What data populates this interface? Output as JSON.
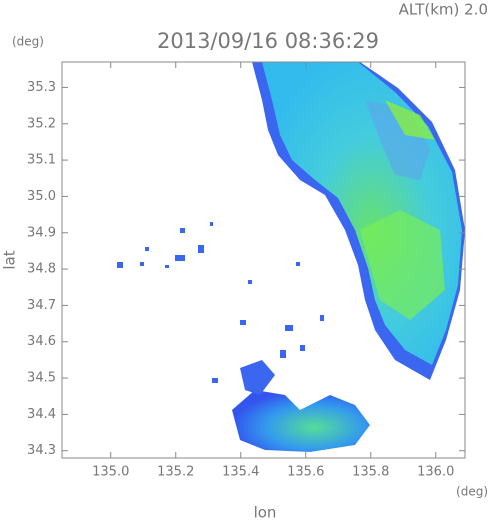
{
  "chart_data": {
    "type": "radar-map",
    "title": "2013/09/16 08:36:29",
    "subtitle": "ALT(km) 2.0",
    "x_label": "lon",
    "x_unit": "(deg)",
    "y_label": "lat",
    "y_unit": "(deg)",
    "xlim": [
      134.85,
      136.09
    ],
    "ylim": [
      34.28,
      35.37
    ],
    "xticks": [
      {
        "value": 135.0,
        "label": "135.0"
      },
      135.2,
      135.4,
      135.6,
      135.8,
      {
        "value": 136.0,
        "label": "136.0"
      }
    ],
    "yticks": [
      34.3,
      34.4,
      34.5,
      34.6,
      34.7,
      34.8,
      34.9,
      {
        "value": 35.0,
        "label": "35.0"
      },
      35.1,
      35.2,
      35.3
    ]
  }
}
